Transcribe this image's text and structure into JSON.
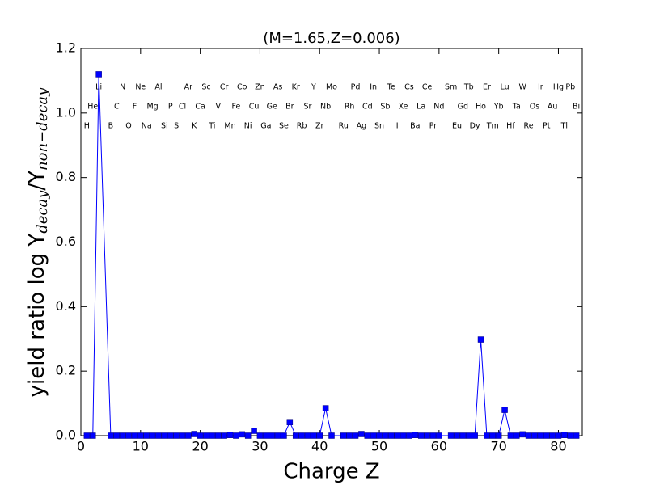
{
  "chart_data": {
    "type": "line",
    "title": "(M=1.65,Z=0.006)",
    "xlabel": "Charge Z",
    "ylabel": {
      "main": "yield ratio log Y",
      "sub1": "decay",
      "mid": "/Y",
      "sub2": "non−decay"
    },
    "x": [
      1,
      2,
      3,
      5,
      6,
      7,
      8,
      9,
      10,
      11,
      12,
      13,
      14,
      15,
      16,
      17,
      18,
      19,
      20,
      21,
      22,
      23,
      24,
      25,
      26,
      27,
      28,
      29,
      30,
      31,
      32,
      33,
      34,
      35,
      36,
      37,
      38,
      39,
      40,
      41,
      42,
      44,
      45,
      46,
      47,
      48,
      49,
      50,
      51,
      52,
      53,
      54,
      55,
      56,
      57,
      58,
      59,
      60,
      62,
      63,
      64,
      65,
      66,
      67,
      68,
      69,
      70,
      71,
      72,
      73,
      74,
      75,
      76,
      77,
      78,
      79,
      80,
      81,
      82,
      83
    ],
    "series": [
      {
        "color": "#0000ff",
        "values": [
          0,
          0,
          1.12,
          0,
          0,
          0,
          0,
          0,
          0,
          0,
          0,
          0,
          0,
          0,
          0,
          0,
          0,
          0.005,
          0,
          0,
          0,
          0,
          0,
          0.002,
          0,
          0.004,
          0,
          0.015,
          0,
          0,
          0,
          0,
          0,
          0.042,
          0,
          0,
          0,
          0,
          0,
          0.085,
          0,
          0,
          0,
          0,
          0.005,
          0,
          0,
          0,
          0,
          0,
          0,
          0,
          0,
          0.002,
          0,
          0,
          0,
          0,
          0,
          0,
          0,
          0,
          0,
          0.298,
          0,
          0,
          0,
          0.08,
          0,
          0,
          0.004,
          0,
          0,
          0,
          0,
          0,
          0,
          0.002,
          0,
          0
        ]
      }
    ],
    "xlim": [
      0,
      84
    ],
    "ylim": [
      0,
      1.2
    ],
    "xticks": [
      0,
      10,
      20,
      30,
      40,
      50,
      60,
      70,
      80
    ],
    "yticks": [
      {
        "value": 0,
        "label": "0.0"
      },
      {
        "value": 0.2,
        "label": "0.2"
      },
      {
        "value": 0.4,
        "label": "0.4"
      },
      {
        "value": 0.6,
        "label": "0.6"
      },
      {
        "value": 0.8,
        "label": "0.8"
      },
      {
        "value": 1.0,
        "label": "1.0"
      },
      {
        "value": 1.2,
        "label": "1.2"
      }
    ],
    "element_labels": [
      {
        "text": "Li",
        "x": 3,
        "y": 1.08
      },
      {
        "text": "N",
        "x": 7,
        "y": 1.08
      },
      {
        "text": "Ne",
        "x": 10,
        "y": 1.08
      },
      {
        "text": "Al",
        "x": 13,
        "y": 1.08
      },
      {
        "text": "Ar",
        "x": 18,
        "y": 1.08
      },
      {
        "text": "Sc",
        "x": 21,
        "y": 1.08
      },
      {
        "text": "Cr",
        "x": 24,
        "y": 1.08
      },
      {
        "text": "Co",
        "x": 27,
        "y": 1.08
      },
      {
        "text": "Zn",
        "x": 30,
        "y": 1.08
      },
      {
        "text": "As",
        "x": 33,
        "y": 1.08
      },
      {
        "text": "Kr",
        "x": 36,
        "y": 1.08
      },
      {
        "text": "Y",
        "x": 39,
        "y": 1.08
      },
      {
        "text": "Mo",
        "x": 42,
        "y": 1.08
      },
      {
        "text": "Pd",
        "x": 46,
        "y": 1.08
      },
      {
        "text": "In",
        "x": 49,
        "y": 1.08
      },
      {
        "text": "Te",
        "x": 52,
        "y": 1.08
      },
      {
        "text": "Cs",
        "x": 55,
        "y": 1.08
      },
      {
        "text": "Ce",
        "x": 58,
        "y": 1.08
      },
      {
        "text": "Sm",
        "x": 62,
        "y": 1.08
      },
      {
        "text": "Tb",
        "x": 65,
        "y": 1.08
      },
      {
        "text": "Er",
        "x": 68,
        "y": 1.08
      },
      {
        "text": "Lu",
        "x": 71,
        "y": 1.08
      },
      {
        "text": "W",
        "x": 74,
        "y": 1.08
      },
      {
        "text": "Ir",
        "x": 77,
        "y": 1.08
      },
      {
        "text": "Hg",
        "x": 80,
        "y": 1.08
      },
      {
        "text": "Pb",
        "x": 82,
        "y": 1.08
      },
      {
        "text": "He",
        "x": 2,
        "y": 1.02
      },
      {
        "text": "C",
        "x": 6,
        "y": 1.02
      },
      {
        "text": "F",
        "x": 9,
        "y": 1.02
      },
      {
        "text": "Mg",
        "x": 12,
        "y": 1.02
      },
      {
        "text": "P",
        "x": 15,
        "y": 1.02
      },
      {
        "text": "Cl",
        "x": 17,
        "y": 1.02
      },
      {
        "text": "Ca",
        "x": 20,
        "y": 1.02
      },
      {
        "text": "V",
        "x": 23,
        "y": 1.02
      },
      {
        "text": "Fe",
        "x": 26,
        "y": 1.02
      },
      {
        "text": "Cu",
        "x": 29,
        "y": 1.02
      },
      {
        "text": "Ge",
        "x": 32,
        "y": 1.02
      },
      {
        "text": "Br",
        "x": 35,
        "y": 1.02
      },
      {
        "text": "Sr",
        "x": 38,
        "y": 1.02
      },
      {
        "text": "Nb",
        "x": 41,
        "y": 1.02
      },
      {
        "text": "Rh",
        "x": 45,
        "y": 1.02
      },
      {
        "text": "Cd",
        "x": 48,
        "y": 1.02
      },
      {
        "text": "Sb",
        "x": 51,
        "y": 1.02
      },
      {
        "text": "Xe",
        "x": 54,
        "y": 1.02
      },
      {
        "text": "La",
        "x": 57,
        "y": 1.02
      },
      {
        "text": "Nd",
        "x": 60,
        "y": 1.02
      },
      {
        "text": "Gd",
        "x": 64,
        "y": 1.02
      },
      {
        "text": "Ho",
        "x": 67,
        "y": 1.02
      },
      {
        "text": "Yb",
        "x": 70,
        "y": 1.02
      },
      {
        "text": "Ta",
        "x": 73,
        "y": 1.02
      },
      {
        "text": "Os",
        "x": 76,
        "y": 1.02
      },
      {
        "text": "Au",
        "x": 79,
        "y": 1.02
      },
      {
        "text": "Bi",
        "x": 83,
        "y": 1.02
      },
      {
        "text": "H",
        "x": 1,
        "y": 0.96
      },
      {
        "text": "B",
        "x": 5,
        "y": 0.96
      },
      {
        "text": "O",
        "x": 8,
        "y": 0.96
      },
      {
        "text": "Na",
        "x": 11,
        "y": 0.96
      },
      {
        "text": "Si",
        "x": 14,
        "y": 0.96
      },
      {
        "text": "S",
        "x": 16,
        "y": 0.96
      },
      {
        "text": "K",
        "x": 19,
        "y": 0.96
      },
      {
        "text": "Ti",
        "x": 22,
        "y": 0.96
      },
      {
        "text": "Mn",
        "x": 25,
        "y": 0.96
      },
      {
        "text": "Ni",
        "x": 28,
        "y": 0.96
      },
      {
        "text": "Ga",
        "x": 31,
        "y": 0.96
      },
      {
        "text": "Se",
        "x": 34,
        "y": 0.96
      },
      {
        "text": "Rb",
        "x": 37,
        "y": 0.96
      },
      {
        "text": "Zr",
        "x": 40,
        "y": 0.96
      },
      {
        "text": "Ru",
        "x": 44,
        "y": 0.96
      },
      {
        "text": "Ag",
        "x": 47,
        "y": 0.96
      },
      {
        "text": "Sn",
        "x": 50,
        "y": 0.96
      },
      {
        "text": "I",
        "x": 53,
        "y": 0.96
      },
      {
        "text": "Ba",
        "x": 56,
        "y": 0.96
      },
      {
        "text": "Pr",
        "x": 59,
        "y": 0.96
      },
      {
        "text": "Eu",
        "x": 63,
        "y": 0.96
      },
      {
        "text": "Dy",
        "x": 66,
        "y": 0.96
      },
      {
        "text": "Tm",
        "x": 69,
        "y": 0.96
      },
      {
        "text": "Hf",
        "x": 72,
        "y": 0.96
      },
      {
        "text": "Re",
        "x": 75,
        "y": 0.96
      },
      {
        "text": "Pt",
        "x": 78,
        "y": 0.96
      },
      {
        "text": "Tl",
        "x": 81,
        "y": 0.96
      }
    ]
  }
}
